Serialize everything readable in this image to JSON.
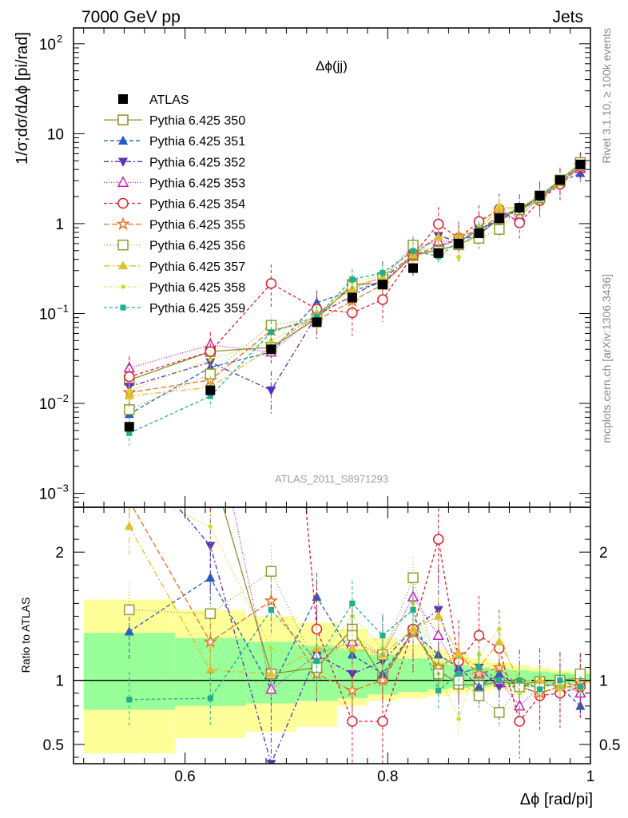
{
  "header": {
    "left": "7000 GeV pp",
    "right": "Jets"
  },
  "side_labels": {
    "rivet": "Rivet 3.1.10, ≥ 100k events",
    "mcplots": "mcplots.cern.ch [arXiv:1306.3436]"
  },
  "watermark": "ATLAS_2011_S8971293",
  "colors": {
    "band_yellow": "#ffff99",
    "band_green": "#99ff99"
  },
  "chart_data": {
    "type": "line",
    "title": "Δϕ(jj)",
    "xlabel": "Δϕ [rad/pi]",
    "ylabel": "1/σ;dσ/dΔϕ [pi/rad]",
    "ratio_ylabel": "Ratio to ATLAS",
    "xlim": [
      0.49,
      1.0
    ],
    "ylim": [
      0.0007,
      150
    ],
    "ratio_ylim": [
      0.35,
      2.35
    ],
    "yscale": "log",
    "legend_position": "top-left",
    "x_ticks": [
      {
        "v": 0.6,
        "label": "0.6"
      },
      {
        "v": 0.8,
        "label": "0.8"
      },
      {
        "v": 1.0,
        "label": "1"
      }
    ],
    "y_ticks": [
      {
        "v": 0.001,
        "base": "10",
        "exp": "−3"
      },
      {
        "v": 0.01,
        "base": "10",
        "exp": "−2"
      },
      {
        "v": 0.1,
        "base": "10",
        "exp": "−1"
      },
      {
        "v": 1,
        "base": "1",
        "exp": ""
      },
      {
        "v": 10,
        "base": "10",
        "exp": ""
      },
      {
        "v": 100,
        "base": "10",
        "exp": "2"
      }
    ],
    "ratio_ticks": [
      {
        "v": 0.5,
        "label": "0.5"
      },
      {
        "v": 1,
        "label": "1"
      },
      {
        "v": 2,
        "label": "2"
      }
    ],
    "bins": [
      [
        0.5,
        0.59
      ],
      [
        0.59,
        0.66
      ],
      [
        0.66,
        0.71
      ],
      [
        0.71,
        0.75
      ],
      [
        0.75,
        0.78
      ],
      [
        0.78,
        0.81
      ],
      [
        0.81,
        0.84
      ],
      [
        0.84,
        0.86
      ],
      [
        0.86,
        0.88
      ],
      [
        0.88,
        0.9
      ],
      [
        0.9,
        0.92
      ],
      [
        0.92,
        0.94
      ],
      [
        0.94,
        0.96
      ],
      [
        0.96,
        0.98
      ],
      [
        0.98,
        1.0
      ]
    ],
    "x": [
      0.545,
      0.625,
      0.685,
      0.73,
      0.765,
      0.795,
      0.825,
      0.85,
      0.87,
      0.89,
      0.91,
      0.93,
      0.95,
      0.97,
      0.99
    ],
    "reference": {
      "name": "ATLAS",
      "values": [
        0.0055,
        0.014,
        0.04,
        0.08,
        0.15,
        0.21,
        0.32,
        0.47,
        0.6,
        0.78,
        1.15,
        1.5,
        2.05,
        3.05,
        4.55
      ],
      "band_green": [
        [
          0.77,
          1.37
        ],
        [
          0.8,
          1.33
        ],
        [
          0.82,
          1.3
        ],
        [
          0.84,
          1.27
        ],
        [
          0.86,
          1.24
        ],
        [
          0.89,
          1.2
        ],
        [
          0.91,
          1.17
        ],
        [
          0.93,
          1.14
        ],
        [
          0.94,
          1.12
        ],
        [
          0.95,
          1.1
        ],
        [
          0.96,
          1.09
        ],
        [
          0.96,
          1.08
        ],
        [
          0.97,
          1.07
        ],
        [
          0.97,
          1.06
        ],
        [
          0.98,
          1.05
        ]
      ],
      "band_yellow": [
        [
          0.43,
          1.63
        ],
        [
          0.55,
          1.55
        ],
        [
          0.6,
          1.5
        ],
        [
          0.64,
          1.45
        ],
        [
          0.8,
          1.4
        ],
        [
          0.84,
          1.33
        ],
        [
          0.86,
          1.28
        ],
        [
          0.88,
          1.24
        ],
        [
          0.9,
          1.2
        ],
        [
          0.92,
          1.17
        ],
        [
          0.93,
          1.14
        ],
        [
          0.94,
          1.12
        ],
        [
          0.95,
          1.1
        ],
        [
          0.96,
          1.08
        ],
        [
          0.97,
          1.07
        ]
      ]
    },
    "series": [
      {
        "name": "Pythia 6.425 350",
        "color": "#8f8f2f",
        "marker": "square-open",
        "dash": "",
        "ratio": [
          3.3,
          2.7,
          1.05,
          1.1,
          1.4,
          1.02,
          1.38,
          1.08,
          0.97,
          0.96,
          0.99,
          0.97,
          0.99,
          1.0,
          1.02
        ]
      },
      {
        "name": "Pythia 6.425 351",
        "color": "#1f5fbf",
        "marker": "triangle-up",
        "dash": "5,3",
        "ratio": [
          1.38,
          1.8,
          0.93,
          1.65,
          1.2,
          1.05,
          1.38,
          1.2,
          1.1,
          0.95,
          1.05,
          0.95,
          0.9,
          0.95,
          0.8
        ]
      },
      {
        "name": "Pythia 6.425 352",
        "color": "#5b2fbf",
        "marker": "triangle-down",
        "dash": "6,3,2,3",
        "ratio": [
          2.8,
          2.05,
          0.35,
          1.2,
          1.05,
          1.15,
          1.4,
          1.55,
          1.05,
          1.1,
          0.95,
          0.95,
          0.97,
          0.95,
          0.95
        ]
      },
      {
        "name": "Pythia 6.425 353",
        "color": "#bf1fbf",
        "marker": "triangle-up-open",
        "dash": "1,2",
        "ratio": [
          4.5,
          3.2,
          0.93,
          1.2,
          1.3,
          1.2,
          1.65,
          1.35,
          1.05,
          1.05,
          1.0,
          0.8,
          0.95,
          0.97,
          0.9
        ]
      },
      {
        "name": "Pythia 6.425 354",
        "color": "#df1f2f",
        "marker": "circle-open",
        "dash": "4,3",
        "ratio": [
          3.6,
          2.7,
          5.4,
          1.4,
          0.68,
          0.68,
          1.4,
          2.1,
          1.15,
          1.35,
          1.25,
          0.68,
          0.88,
          0.9,
          0.95
        ]
      },
      {
        "name": "Pythia 6.425 355",
        "color": "#ef6f1f",
        "marker": "star-open",
        "dash": "7,3",
        "ratio": [
          2.4,
          1.3,
          1.62,
          1.05,
          0.92,
          1.0,
          1.38,
          1.1,
          1.2,
          1.05,
          1.1,
          0.95,
          0.9,
          0.95,
          0.98
        ]
      },
      {
        "name": "Pythia 6.425 356",
        "color": "#8f9f2f",
        "marker": "square-open",
        "dash": "1,3",
        "ratio": [
          1.55,
          1.52,
          1.85,
          1.1,
          1.35,
          1.2,
          1.8,
          1.05,
          1.0,
          0.88,
          0.75,
          0.95,
          0.95,
          1.0,
          1.05
        ]
      },
      {
        "name": "Pythia 6.425 357",
        "color": "#dfbf2f",
        "marker": "triangle-open-small",
        "dash": "8,3,2,3",
        "ratio": [
          2.2,
          1.08,
          1.05,
          1.25,
          1.25,
          1.2,
          1.4,
          1.5,
          1.2,
          1.1,
          1.3,
          1.0,
          1.0,
          0.95,
          0.95
        ]
      },
      {
        "name": "Pythia 6.425 358",
        "color": "#bfdf1f",
        "marker": "dot",
        "dash": "1,2",
        "ratio": [
          2.5,
          2.2,
          1.25,
          1.15,
          1.5,
          1.25,
          1.6,
          1.05,
          0.7,
          1.2,
          1.4,
          0.9,
          0.92,
          0.95,
          0.95
        ]
      },
      {
        "name": "Pythia 6.425 359",
        "color": "#1faf8f",
        "marker": "square-small",
        "dash": "4,3",
        "ratio": [
          0.85,
          0.86,
          1.55,
          1.15,
          1.6,
          1.35,
          1.55,
          0.92,
          1.05,
          1.1,
          1.0,
          1.0,
          0.93,
          1.0,
          0.95
        ]
      }
    ]
  }
}
